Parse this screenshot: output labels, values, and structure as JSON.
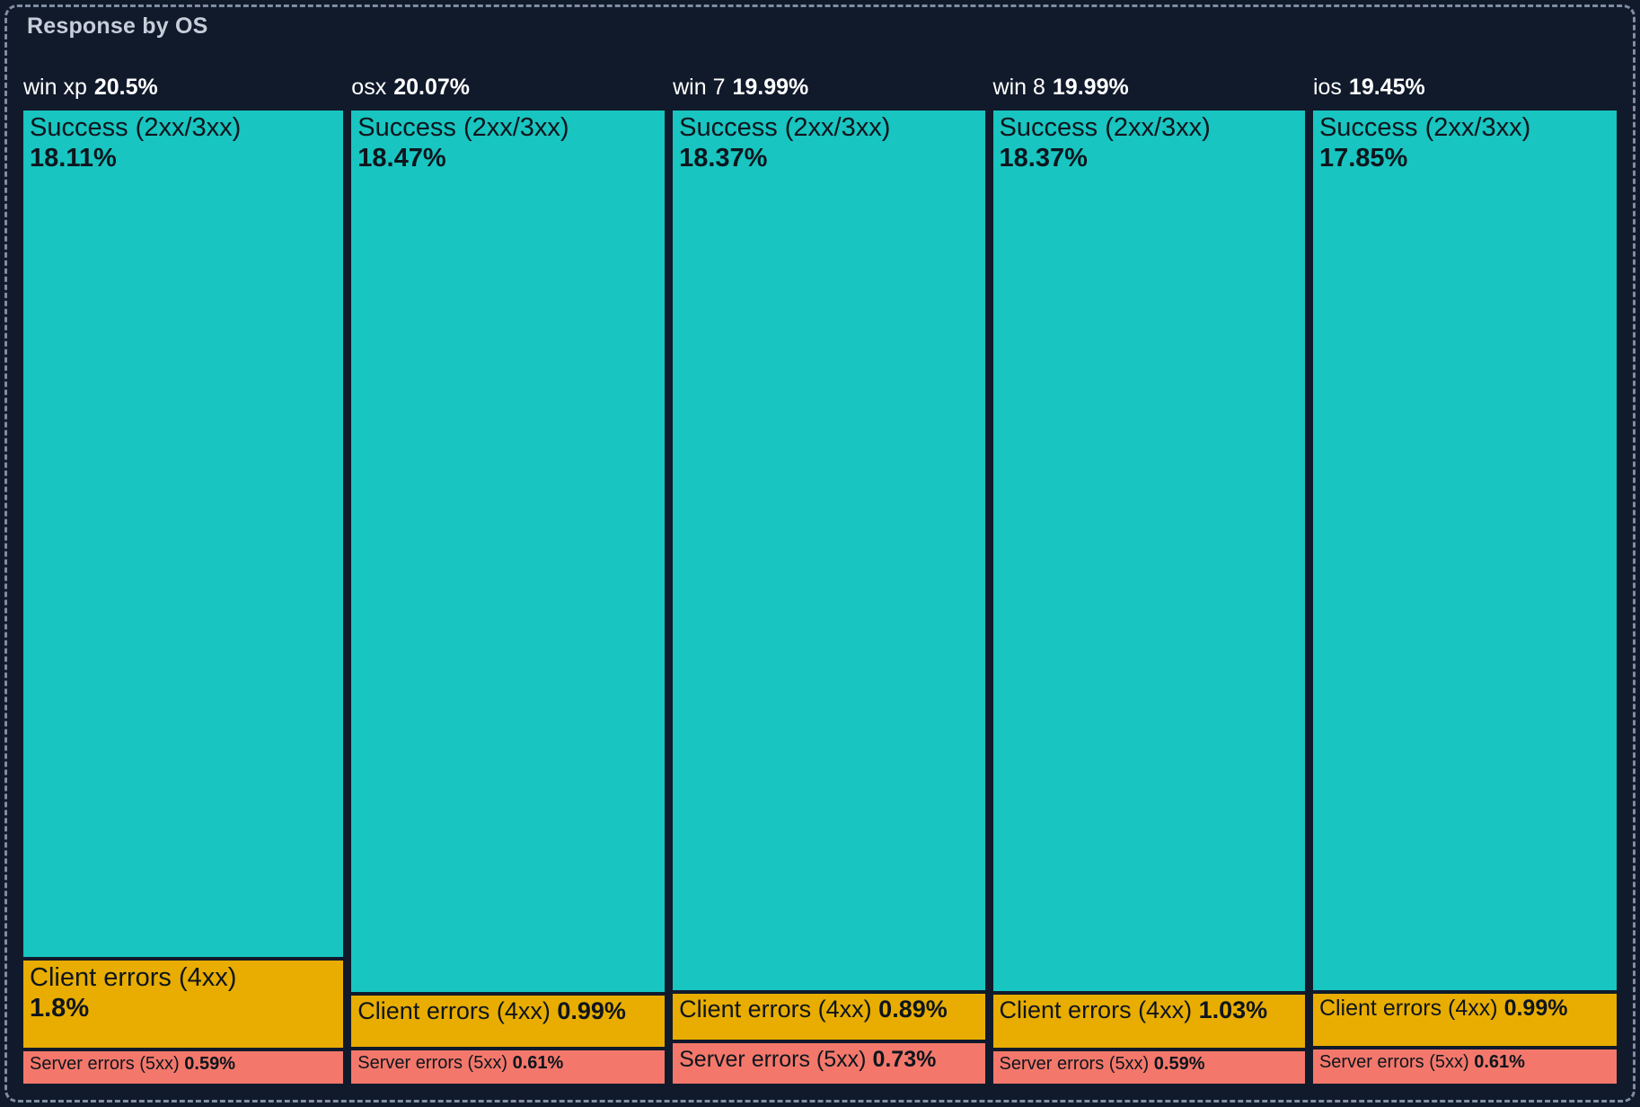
{
  "panel": {
    "title": "Response by OS"
  },
  "colors": {
    "background": "#111a2b",
    "dashed_border": "#7f8ea2",
    "title_text": "#c5ced9",
    "header_text": "#ffffff",
    "segment_text": "#0e151d",
    "success": "#18c5c0",
    "client_errors": "#e8ad00",
    "server_errors": "#f3786b"
  },
  "chart_data": {
    "type": "treemap",
    "title": "Response by OS",
    "categories": [
      "win xp",
      "osx",
      "win 7",
      "win 8",
      "ios"
    ],
    "category_totals": [
      20.5,
      20.07,
      19.99,
      19.99,
      19.45
    ],
    "series": [
      {
        "name": "Success (2xx/3xx)",
        "values": [
          18.11,
          18.47,
          18.37,
          18.37,
          17.85
        ]
      },
      {
        "name": "Client errors (4xx)",
        "values": [
          1.8,
          0.99,
          0.89,
          1.03,
          0.99
        ]
      },
      {
        "name": "Server errors (5xx)",
        "values": [
          0.59,
          0.61,
          0.73,
          0.59,
          0.61
        ]
      }
    ],
    "layout": {
      "orientation": "columns-proportional-width",
      "legend": "none",
      "grid": "off"
    },
    "columns": [
      {
        "name": "win xp",
        "total": 20.5,
        "total_label": "20.5%",
        "success": {
          "label": "Success (2xx/3xx)",
          "value": 18.11,
          "value_label": "18.11%"
        },
        "client": {
          "label": "Client errors (4xx)",
          "value": 1.8,
          "value_label": "1.8%"
        },
        "server": {
          "label": "Server errors (5xx)",
          "value": 0.59,
          "value_label": "0.59%"
        }
      },
      {
        "name": "osx",
        "total": 20.07,
        "total_label": "20.07%",
        "success": {
          "label": "Success (2xx/3xx)",
          "value": 18.47,
          "value_label": "18.47%"
        },
        "client": {
          "label": "Client errors (4xx)",
          "value": 0.99,
          "value_label": "0.99%"
        },
        "server": {
          "label": "Server errors (5xx)",
          "value": 0.61,
          "value_label": "0.61%"
        }
      },
      {
        "name": "win 7",
        "total": 19.99,
        "total_label": "19.99%",
        "success": {
          "label": "Success (2xx/3xx)",
          "value": 18.37,
          "value_label": "18.37%"
        },
        "client": {
          "label": "Client errors (4xx)",
          "value": 0.89,
          "value_label": "0.89%"
        },
        "server": {
          "label": "Server errors (5xx)",
          "value": 0.73,
          "value_label": "0.73%"
        }
      },
      {
        "name": "win 8",
        "total": 19.99,
        "total_label": "19.99%",
        "success": {
          "label": "Success (2xx/3xx)",
          "value": 18.37,
          "value_label": "18.37%"
        },
        "client": {
          "label": "Client errors (4xx)",
          "value": 1.03,
          "value_label": "1.03%"
        },
        "server": {
          "label": "Server errors (5xx)",
          "value": 0.59,
          "value_label": "0.59%"
        }
      },
      {
        "name": "ios",
        "total": 19.45,
        "total_label": "19.45%",
        "success": {
          "label": "Success (2xx/3xx)",
          "value": 17.85,
          "value_label": "17.85%"
        },
        "client": {
          "label": "Client errors (4xx)",
          "value": 0.99,
          "value_label": "0.99%"
        },
        "server": {
          "label": "Server errors (5xx)",
          "value": 0.61,
          "value_label": "0.61%"
        }
      }
    ]
  }
}
